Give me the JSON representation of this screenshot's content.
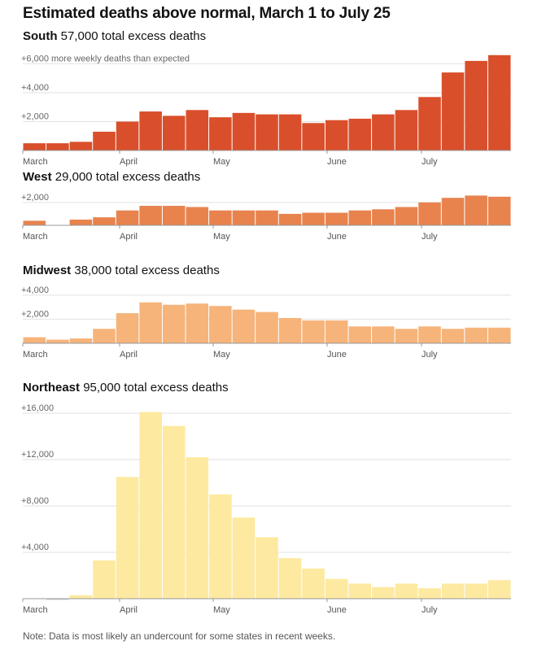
{
  "title": "Estimated deaths above normal, March 1 to July 25",
  "note": "Note: Data is most likely an undercount for some states in recent weeks.",
  "chart_data": [
    {
      "type": "bar",
      "region": "South",
      "subtitle": "57,000 total excess deaths",
      "color": "#d94f2b",
      "ylim": [
        0,
        6700
      ],
      "yticks": [
        2000,
        4000,
        6000
      ],
      "ytick_labels": [
        "+2,000",
        "+4,000",
        "+6,000 more weekly deaths than expected"
      ],
      "month_labels": [
        "March",
        "April",
        "May",
        "June",
        "July"
      ],
      "values": [
        500,
        500,
        600,
        1300,
        2000,
        2700,
        2400,
        2800,
        2300,
        2600,
        2500,
        2500,
        1900,
        2100,
        2200,
        2500,
        2800,
        3700,
        5400,
        6200,
        6600
      ]
    },
    {
      "type": "bar",
      "region": "West",
      "subtitle": "29,000 total excess deaths",
      "color": "#e8834e",
      "ylim": [
        0,
        2700
      ],
      "yticks": [
        2000
      ],
      "ytick_labels": [
        "+2,000"
      ],
      "month_labels": [
        "March",
        "April",
        "May",
        "June",
        "July"
      ],
      "values": [
        400,
        0,
        500,
        700,
        1300,
        1700,
        1700,
        1600,
        1300,
        1300,
        1300,
        1000,
        1100,
        1100,
        1300,
        1400,
        1600,
        2000,
        2400,
        2600,
        2500
      ]
    },
    {
      "type": "bar",
      "region": "Midwest",
      "subtitle": "38,000 total excess deaths",
      "color": "#f6b47a",
      "ylim": [
        0,
        4600
      ],
      "yticks": [
        2000,
        4000
      ],
      "ytick_labels": [
        "+2,000",
        "+4,000"
      ],
      "month_labels": [
        "March",
        "April",
        "May",
        "June",
        "July"
      ],
      "values": [
        500,
        300,
        400,
        1200,
        2500,
        3400,
        3200,
        3300,
        3100,
        2800,
        2600,
        2100,
        1900,
        1900,
        1400,
        1400,
        1200,
        1400,
        1200,
        1300,
        1300
      ]
    },
    {
      "type": "bar",
      "region": "Northeast",
      "subtitle": "95,000 total excess deaths",
      "color": "#fde9a0",
      "ylim": [
        0,
        16700
      ],
      "yticks": [
        4000,
        8000,
        12000,
        16000
      ],
      "ytick_labels": [
        "+4,000",
        "+8,000",
        "+12,000",
        "+16,000"
      ],
      "month_labels": [
        "March",
        "April",
        "May",
        "June",
        "July"
      ],
      "values": [
        0,
        -100,
        300,
        3300,
        10500,
        16100,
        14900,
        12200,
        9000,
        7000,
        5300,
        3500,
        2600,
        1700,
        1300,
        1000,
        1300,
        900,
        1300,
        1300,
        1600
      ]
    }
  ]
}
